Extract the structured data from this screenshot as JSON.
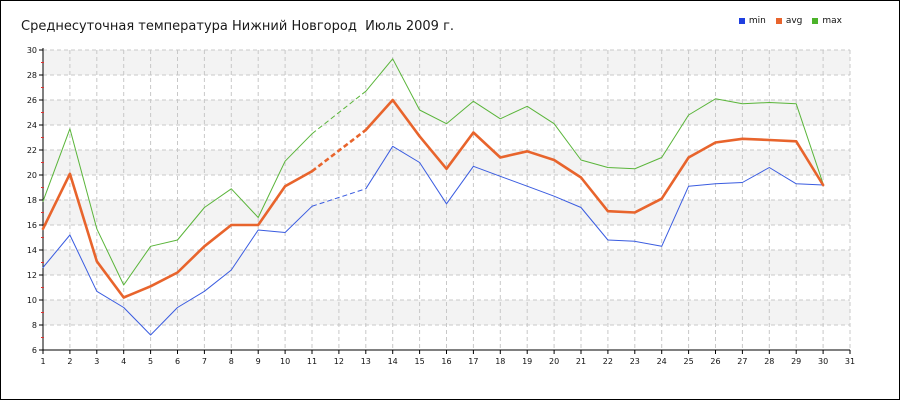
{
  "title": "Среднесуточная температура Нижний Новгород  Июль 2009 г.",
  "legend": [
    {
      "name": "min",
      "color": "#1f3fe0"
    },
    {
      "name": "avg",
      "color": "#e8642c"
    },
    {
      "name": "max",
      "color": "#4cb32a"
    }
  ],
  "chart_data": {
    "type": "line",
    "title": "Среднесуточная температура Нижний Новгород  Июль 2009 г.",
    "xlabel": "",
    "ylabel": "",
    "xlim": [
      1,
      31
    ],
    "ylim": [
      6,
      30
    ],
    "x_ticks": [
      1,
      2,
      3,
      4,
      5,
      6,
      7,
      8,
      9,
      10,
      11,
      12,
      13,
      14,
      15,
      16,
      17,
      18,
      19,
      20,
      21,
      22,
      23,
      24,
      25,
      26,
      27,
      28,
      29,
      30,
      31
    ],
    "y_ticks": [
      6,
      8,
      10,
      12,
      14,
      16,
      18,
      20,
      22,
      24,
      26,
      28,
      30
    ],
    "grid": true,
    "legend_position": "top-right",
    "x": [
      1,
      2,
      3,
      4,
      5,
      6,
      7,
      8,
      9,
      10,
      11,
      13,
      14,
      15,
      16,
      17,
      18,
      19,
      20,
      21,
      22,
      23,
      24,
      25,
      26,
      27,
      28,
      29,
      30
    ],
    "series": [
      {
        "name": "min",
        "color": "#3a5ce0",
        "values": [
          12.6,
          15.2,
          10.7,
          9.4,
          7.2,
          9.4,
          10.7,
          12.4,
          15.6,
          15.4,
          17.5,
          18.9,
          22.3,
          21.0,
          17.7,
          20.7,
          19.9,
          19.1,
          18.3,
          17.4,
          14.8,
          14.7,
          14.3,
          19.1,
          19.3,
          19.4,
          20.6,
          19.3,
          19.2
        ]
      },
      {
        "name": "avg",
        "color": "#e8642c",
        "values": [
          15.7,
          20.1,
          13.1,
          10.2,
          11.1,
          12.2,
          14.3,
          16.0,
          16.0,
          19.1,
          20.3,
          23.6,
          26.0,
          23.1,
          20.5,
          23.4,
          21.4,
          21.9,
          21.2,
          19.8,
          17.1,
          17.0,
          18.1,
          21.4,
          22.6,
          22.9,
          22.8,
          22.7,
          19.2
        ]
      },
      {
        "name": "max",
        "color": "#5ab53a",
        "values": [
          17.9,
          23.7,
          15.7,
          11.2,
          14.3,
          14.8,
          17.4,
          18.9,
          16.6,
          21.1,
          23.3,
          26.7,
          29.3,
          25.2,
          24.1,
          25.9,
          24.5,
          25.5,
          24.1,
          21.2,
          20.6,
          20.5,
          21.4,
          24.8,
          26.1,
          25.7,
          25.8,
          25.7,
          19.3
        ]
      }
    ],
    "gap_between": [
      11,
      13
    ]
  }
}
